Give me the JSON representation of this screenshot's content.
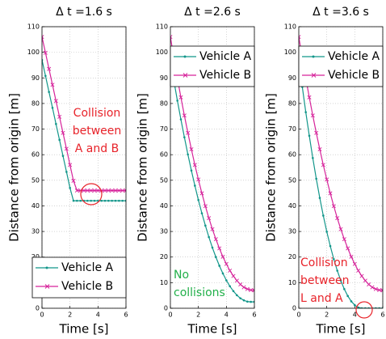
{
  "chart_data": [
    {
      "type": "line",
      "title": "Δ t =1.6 s",
      "xlabel": "Time [s]",
      "ylabel": "Distance from origin [m]",
      "x": [
        0,
        0.25,
        0.5,
        0.75,
        1,
        1.25,
        1.5,
        1.75,
        2,
        2.25,
        2.5,
        2.75,
        3,
        3.25,
        3.5,
        3.75,
        4,
        4.25,
        4.5,
        4.75,
        5,
        5.25,
        5.5,
        5.75,
        6
      ],
      "series": [
        {
          "name": "Vehicle A",
          "color": "#12968a",
          "marker": "dot",
          "values": [
            97,
            90.8,
            84.5,
            78.3,
            72,
            65.8,
            59.5,
            53.3,
            47,
            42,
            42,
            42,
            42,
            42,
            42,
            42,
            42,
            42,
            42,
            42,
            42,
            42,
            42,
            42,
            42
          ]
        },
        {
          "name": "Vehicle B",
          "color": "#d6239a",
          "marker": "x",
          "values": [
            106,
            99.8,
            93.5,
            87.3,
            81,
            74.8,
            68.5,
            62.3,
            56,
            49.8,
            46,
            46,
            46,
            46,
            46,
            46,
            46,
            46,
            46,
            46,
            46,
            46,
            46,
            46,
            46
          ]
        }
      ],
      "xlim": [
        0,
        6
      ],
      "ylim": [
        0,
        110
      ],
      "xticks": [
        0,
        2,
        4,
        6
      ],
      "yticks": [
        0,
        10,
        20,
        30,
        40,
        50,
        60,
        70,
        80,
        90,
        100,
        110
      ],
      "grid": true,
      "legend_position": "lower left",
      "annotations": [
        {
          "lines": [
            "Collision",
            "between",
            "A and B"
          ],
          "color": "#e8232a"
        }
      ]
    },
    {
      "type": "line",
      "title": "Δ t =2.6 s",
      "xlabel": "Time [s]",
      "ylabel": "Distance from origin [m]",
      "x": [
        0,
        0.25,
        0.5,
        0.75,
        1,
        1.25,
        1.5,
        1.75,
        2,
        2.25,
        2.5,
        2.75,
        3,
        3.25,
        3.5,
        3.75,
        4,
        4.25,
        4.5,
        4.75,
        5,
        5.25,
        5.5,
        5.75,
        6
      ],
      "series": [
        {
          "name": "Vehicle A",
          "color": "#12968a",
          "marker": "dot",
          "values": [
            97,
            88.9,
            81.1,
            73.8,
            66.8,
            60.1,
            53.8,
            47.9,
            42.3,
            37.1,
            32.3,
            27.8,
            23.7,
            20,
            16.6,
            13.6,
            10.9,
            8.6,
            6.7,
            5.1,
            3.9,
            3.1,
            2.6,
            2.5,
            2.5
          ]
        },
        {
          "name": "Vehicle B",
          "color": "#d6239a",
          "marker": "x",
          "values": [
            106,
            97.8,
            89.9,
            82.4,
            75.3,
            68.5,
            62.1,
            56,
            50.3,
            44.9,
            39.9,
            35.2,
            30.9,
            27,
            23.4,
            20.1,
            17.3,
            14.7,
            12.6,
            10.8,
            9.3,
            8.2,
            7.5,
            7.1,
            7
          ]
        }
      ],
      "xlim": [
        0,
        6
      ],
      "ylim": [
        0,
        110
      ],
      "xticks": [
        0,
        2,
        4,
        6
      ],
      "yticks": [
        0,
        10,
        20,
        30,
        40,
        50,
        60,
        70,
        80,
        90,
        100,
        110
      ],
      "grid": true,
      "legend_position": "upper right",
      "annotations": [
        {
          "lines": [
            "No",
            "collisions"
          ],
          "color": "#22b04a"
        }
      ]
    },
    {
      "type": "line",
      "title": "Δ t =3.6 s",
      "xlabel": "Time [s]",
      "ylabel": "Distance from origin [m]",
      "x": [
        0,
        0.25,
        0.5,
        0.75,
        1,
        1.25,
        1.5,
        1.75,
        2,
        2.25,
        2.5,
        2.75,
        3,
        3.25,
        3.5,
        3.75,
        4,
        4.25,
        4.5,
        4.75,
        5,
        5.25,
        5.5,
        5.75,
        6
      ],
      "series": [
        {
          "name": "Vehicle A",
          "color": "#12968a",
          "marker": "dot",
          "values": [
            97,
            86.5,
            76.6,
            67.4,
            58.7,
            50.6,
            43.1,
            36.2,
            29.9,
            24.3,
            19.2,
            14.7,
            10.8,
            7.5,
            4.8,
            2.7,
            1.2,
            0.3,
            0,
            0,
            0,
            0,
            0,
            0,
            0
          ]
        },
        {
          "name": "Vehicle B",
          "color": "#d6239a",
          "marker": "x",
          "values": [
            106,
            97.8,
            89.9,
            82.4,
            75.3,
            68.5,
            62.1,
            56,
            50.3,
            44.9,
            39.9,
            35.2,
            30.9,
            27,
            23.4,
            20.1,
            17.3,
            14.7,
            12.6,
            10.8,
            9.3,
            8.2,
            7.5,
            7.1,
            7
          ]
        }
      ],
      "xlim": [
        0,
        6
      ],
      "ylim": [
        0,
        110
      ],
      "xticks": [
        0,
        2,
        4,
        6
      ],
      "yticks": [
        0,
        10,
        20,
        30,
        40,
        50,
        60,
        70,
        80,
        90,
        100,
        110
      ],
      "grid": true,
      "legend_position": "upper right",
      "annotations": [
        {
          "lines": [
            "Collision",
            "between",
            "L and A"
          ],
          "color": "#e8232a"
        }
      ]
    }
  ]
}
